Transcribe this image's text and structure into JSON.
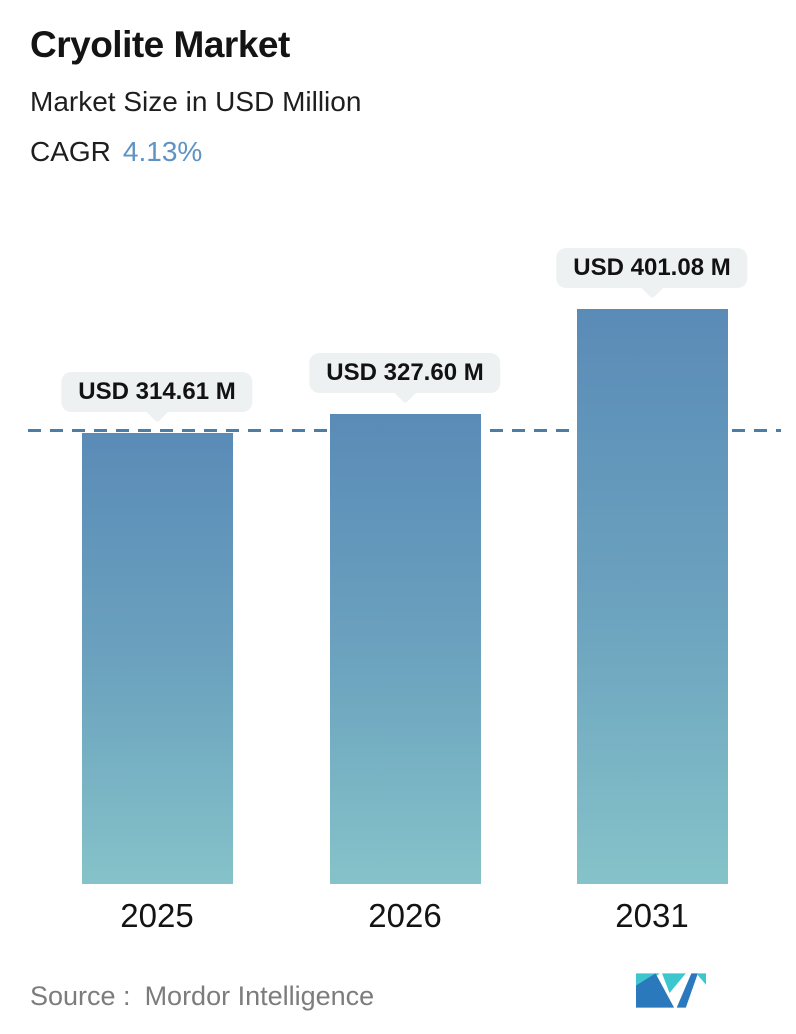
{
  "header": {
    "title": "Cryolite Market",
    "subtitle": "Market Size in USD Million",
    "cagr_label": "CAGR",
    "cagr_value": "4.13%"
  },
  "chart_data": {
    "type": "bar",
    "categories": [
      "2025",
      "2026",
      "2031"
    ],
    "values": [
      314.61,
      327.6,
      401.08
    ],
    "value_labels": [
      "USD 314.61 M",
      "USD 327.60 M",
      "USD 401.08 M"
    ],
    "title": "Cryolite Market",
    "subtitle": "Market Size in USD Million",
    "cagr": "4.13%",
    "ylabel": "Market Size (USD Million)",
    "xlabel": "",
    "ylim": [
      0,
      430
    ],
    "grid": false,
    "legend": "none",
    "reference_line": {
      "style": "dashed",
      "value": 314.61,
      "color": "#4a7ea9"
    },
    "bar_color_top": "#5b8cb8",
    "bar_color_bottom": "#85c3c9",
    "callout_background": "#edf1f2"
  },
  "footer": {
    "source_prefix": "Source :",
    "source_value": "Mordor Intelligence",
    "logo_name": "mordor-intelligence-logo",
    "logo_colors": {
      "teal": "#3ec6ce",
      "blue": "#2a79bc"
    }
  },
  "colors": {
    "title_text": "#141414",
    "cagr_accent": "#5f93c3",
    "source_text": "#7c7c7c",
    "background": "#ffffff"
  }
}
